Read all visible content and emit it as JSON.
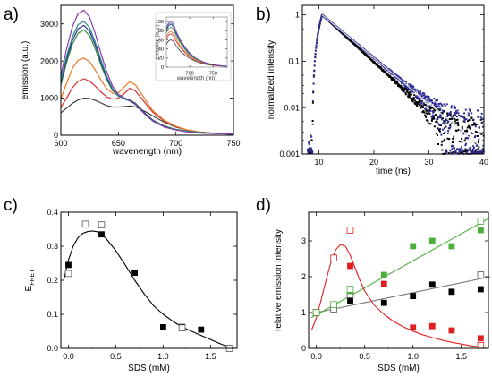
{
  "chart_data": [
    {
      "id": "a",
      "type": "line",
      "panel_label": "a)",
      "xlabel": "wavenength (nm)",
      "ylabel": "emission (a.u.)",
      "xlim": [
        600,
        750
      ],
      "ylim": [
        0,
        3500
      ],
      "xticks": [
        600,
        650,
        700,
        750
      ],
      "yticks": [
        0,
        1000,
        2000,
        3000
      ],
      "series": [
        {
          "color": "#3c3c3c",
          "x": [
            600,
            605,
            610,
            615,
            620,
            625,
            630,
            635,
            640,
            645,
            650,
            655,
            660,
            665,
            670,
            675,
            680,
            690,
            700,
            710,
            720,
            730,
            740,
            750
          ],
          "values": [
            600,
            730,
            860,
            950,
            1000,
            990,
            940,
            870,
            800,
            760,
            760,
            770,
            790,
            760,
            690,
            610,
            520,
            350,
            220,
            140,
            90,
            60,
            40,
            30
          ]
        },
        {
          "color": "#dd2c2c",
          "x": [
            600,
            605,
            610,
            615,
            620,
            625,
            630,
            635,
            640,
            645,
            650,
            655,
            660,
            665,
            670,
            675,
            680,
            690,
            700,
            710,
            720,
            730,
            740,
            750
          ],
          "values": [
            750,
            1000,
            1280,
            1450,
            1520,
            1460,
            1320,
            1160,
            1030,
            970,
            1000,
            1120,
            1270,
            1190,
            1000,
            800,
            620,
            380,
            230,
            140,
            90,
            60,
            40,
            30
          ]
        },
        {
          "color": "#ee7722",
          "x": [
            600,
            605,
            610,
            615,
            620,
            625,
            630,
            635,
            640,
            645,
            650,
            655,
            660,
            665,
            670,
            675,
            680,
            690,
            700,
            710,
            720,
            730,
            740,
            750
          ],
          "values": [
            980,
            1400,
            1800,
            2020,
            2080,
            1980,
            1750,
            1480,
            1250,
            1130,
            1140,
            1300,
            1450,
            1350,
            1120,
            880,
            660,
            400,
            240,
            140,
            90,
            60,
            40,
            30
          ]
        },
        {
          "color": "#3e8f3e",
          "x": [
            600,
            605,
            610,
            615,
            620,
            625,
            630,
            635,
            640,
            645,
            650,
            655,
            660,
            665,
            670,
            675,
            680,
            690,
            700,
            710,
            720,
            730,
            740,
            750
          ],
          "values": [
            1350,
            1950,
            2450,
            2750,
            2840,
            2680,
            2320,
            1880,
            1490,
            1200,
            1050,
            1000,
            960,
            860,
            700,
            540,
            410,
            250,
            160,
            110,
            80,
            60,
            40,
            30
          ]
        },
        {
          "color": "#2b2b8c",
          "x": [
            600,
            605,
            610,
            615,
            620,
            625,
            630,
            635,
            640,
            645,
            650,
            655,
            660,
            665,
            670,
            675,
            680,
            690,
            700,
            710,
            720,
            730,
            740,
            750
          ],
          "values": [
            1420,
            2050,
            2550,
            2870,
            2960,
            2800,
            2420,
            1960,
            1540,
            1230,
            1060,
            990,
            940,
            840,
            680,
            530,
            400,
            240,
            150,
            100,
            70,
            50,
            40,
            30
          ]
        },
        {
          "color": "#2a8a8a",
          "x": [
            600,
            605,
            610,
            615,
            620,
            625,
            630,
            635,
            640,
            645,
            650,
            655,
            660,
            665,
            670,
            675,
            680,
            690,
            700,
            710,
            720,
            730,
            740,
            750
          ],
          "values": [
            1480,
            2130,
            2650,
            2980,
            3070,
            2900,
            2500,
            2020,
            1580,
            1250,
            1060,
            980,
            920,
            820,
            660,
            510,
            390,
            230,
            150,
            100,
            70,
            50,
            40,
            30
          ]
        },
        {
          "color": "#8a3ab0",
          "x": [
            600,
            605,
            610,
            615,
            620,
            625,
            630,
            635,
            640,
            645,
            650,
            655,
            660,
            665,
            670,
            675,
            680,
            690,
            700,
            710,
            720,
            730,
            740,
            750
          ],
          "values": [
            1600,
            2330,
            2920,
            3280,
            3370,
            3180,
            2730,
            2190,
            1700,
            1320,
            1100,
            1010,
            940,
            830,
            660,
            510,
            380,
            220,
            140,
            90,
            60,
            50,
            40,
            30
          ]
        }
      ],
      "inset": {
        "xlabel": "wavelength (nm)",
        "ylabel": "emission (a.u.)",
        "xlim": [
          650,
          780
        ],
        "ylim": [
          0,
          110
        ],
        "xticks": [
          700,
          750
        ],
        "yticks": [
          0,
          20,
          40,
          60,
          80,
          100
        ],
        "series": [
          {
            "color": "#3c3c3c",
            "x": [
              650,
              655,
              660,
              665,
              670,
              680,
              690,
              700,
              710,
              720,
              730,
              740,
              750,
              760,
              770,
              780
            ],
            "values": [
              50,
              58,
              60,
              57,
              48,
              35,
              26,
              19,
              14,
              10,
              7,
              5,
              4,
              3,
              2,
              2
            ]
          },
          {
            "color": "#dd2c2c",
            "x": [
              650,
              655,
              660,
              665,
              670,
              680,
              690,
              700,
              710,
              720,
              730,
              740,
              750,
              760,
              770,
              780
            ],
            "values": [
              62,
              71,
              73,
              69,
              58,
              43,
              31,
              22,
              16,
              12,
              8,
              6,
              4,
              3,
              3,
              2
            ]
          },
          {
            "color": "#ee7722",
            "x": [
              650,
              655,
              660,
              665,
              670,
              680,
              690,
              700,
              710,
              720,
              730,
              740,
              750,
              760,
              770,
              780
            ],
            "values": [
              67,
              76,
              78,
              74,
              63,
              46,
              34,
              24,
              17,
              12,
              9,
              6,
              5,
              4,
              3,
              2
            ]
          },
          {
            "color": "#3e8f3e",
            "x": [
              650,
              655,
              660,
              665,
              670,
              680,
              690,
              700,
              710,
              720,
              730,
              740,
              750,
              760,
              770,
              780
            ],
            "values": [
              75,
              85,
              88,
              83,
              70,
              52,
              38,
              27,
              19,
              14,
              10,
              7,
              5,
              4,
              3,
              2
            ]
          },
          {
            "color": "#2b2b8c",
            "x": [
              650,
              655,
              660,
              665,
              670,
              680,
              690,
              700,
              710,
              720,
              730,
              740,
              750,
              760,
              770,
              780
            ],
            "values": [
              80,
              91,
              94,
              89,
              75,
              56,
              41,
              29,
              21,
              15,
              10,
              7,
              5,
              4,
              3,
              2
            ]
          },
          {
            "color": "#2a8a8a",
            "x": [
              650,
              655,
              660,
              665,
              670,
              680,
              690,
              700,
              710,
              720,
              730,
              740,
              750,
              760,
              770,
              780
            ],
            "values": [
              83,
              94,
              97,
              92,
              78,
              58,
              42,
              30,
              21,
              15,
              11,
              8,
              6,
              4,
              3,
              2
            ]
          },
          {
            "color": "#8a3ab0",
            "x": [
              650,
              655,
              660,
              665,
              670,
              680,
              690,
              700,
              710,
              720,
              730,
              740,
              750,
              760,
              770,
              780
            ],
            "values": [
              86,
              98,
              101,
              96,
              81,
              60,
              44,
              31,
              22,
              16,
              11,
              8,
              6,
              4,
              3,
              2
            ]
          }
        ]
      }
    },
    {
      "id": "b",
      "type": "line",
      "panel_label": "b)",
      "xlabel": "time (ns)",
      "ylabel": "normalized intensity",
      "xlim": [
        7,
        40
      ],
      "ylim": [
        0.001,
        1.6
      ],
      "yscale": "log",
      "xticks": [
        10,
        20,
        30,
        40
      ],
      "yticks": [
        0.001,
        0.01,
        0.1,
        1
      ],
      "ytick_labels": [
        "0.001",
        "0.01",
        "0.1",
        "1"
      ],
      "series": [
        {
          "color": "#000000",
          "rise_start": 8.8,
          "peak_time": 10.6,
          "decay_constant": 4.0,
          "noise_floor": 0.0018
        },
        {
          "color": "#2e2e96",
          "rise_start": 8.8,
          "peak_time": 10.6,
          "decay_constant": 4.4,
          "noise_floor": 0.0025
        },
        {
          "color": "#dddddd",
          "rise_start": 8.8,
          "peak_time": 10.6,
          "decay_constant": 4.4,
          "noise_floor": 0.0025
        }
      ]
    },
    {
      "id": "c",
      "type": "scatter",
      "panel_label": "c)",
      "xlabel": "SDS (mM)",
      "ylabel": "E",
      "ylabel_sub": "FRET",
      "xlim": [
        -0.08,
        1.78
      ],
      "ylim": [
        0,
        0.4
      ],
      "xticks": [
        0.0,
        0.5,
        1.0,
        1.5
      ],
      "xtick_labels": [
        "0.0",
        "0.5",
        "1.0",
        "1.5"
      ],
      "yticks": [
        0.0,
        0.1,
        0.2,
        0.3,
        0.4
      ],
      "ytick_labels": [
        "0.0",
        "0.1",
        "0.2",
        "0.3",
        "0.4"
      ],
      "series": [
        {
          "marker": "filled-square",
          "color": "#000000",
          "x": [
            0.0,
            0.35,
            0.7,
            1.0,
            1.2,
            1.4,
            1.7
          ],
          "values": [
            0.245,
            0.335,
            0.222,
            0.062,
            0.063,
            0.055,
            0.0
          ]
        },
        {
          "marker": "open-square",
          "color": "#555555",
          "x": [
            0.0,
            0.18,
            0.35,
            1.2,
            1.7
          ],
          "values": [
            0.22,
            0.365,
            0.363,
            0.06,
            0.0
          ]
        },
        {
          "marker": "line",
          "color": "#000000",
          "x": [
            -0.05,
            0.0,
            0.05,
            0.1,
            0.15,
            0.2,
            0.25,
            0.3,
            0.35,
            0.4,
            0.5,
            0.6,
            0.7,
            0.8,
            0.9,
            1.0,
            1.1,
            1.2,
            1.3,
            1.4,
            1.5,
            1.6,
            1.7
          ],
          "values": [
            0.2,
            0.26,
            0.3,
            0.325,
            0.338,
            0.343,
            0.345,
            0.343,
            0.335,
            0.322,
            0.287,
            0.245,
            0.2,
            0.16,
            0.125,
            0.1,
            0.08,
            0.063,
            0.05,
            0.038,
            0.026,
            0.014,
            0.003
          ]
        }
      ]
    },
    {
      "id": "d",
      "type": "scatter",
      "panel_label": "d)",
      "xlabel": "SDS (mM)",
      "ylabel": "relative emission intensity",
      "xlim": [
        -0.08,
        1.78
      ],
      "ylim": [
        0,
        3.8
      ],
      "xticks": [
        0.0,
        0.5,
        1.0,
        1.5
      ],
      "xtick_labels": [
        "0.0",
        "0.5",
        "1.0",
        "1.5"
      ],
      "yticks": [
        0,
        1,
        2,
        3
      ],
      "series": [
        {
          "marker": "filled-square",
          "color": "#000000",
          "x": [
            0.0,
            0.35,
            0.7,
            1.0,
            1.2,
            1.4,
            1.7
          ],
          "values": [
            1.0,
            1.32,
            1.27,
            1.46,
            1.78,
            1.58,
            1.65
          ]
        },
        {
          "marker": "open-square",
          "color": "#555555",
          "x": [
            0.0,
            0.18,
            0.35,
            1.7
          ],
          "values": [
            1.0,
            1.1,
            1.5,
            2.05
          ]
        },
        {
          "marker": "filled-square",
          "color": "#e02020",
          "x": [
            0.0,
            0.35,
            0.7,
            1.0,
            1.2,
            1.4,
            1.7
          ],
          "values": [
            1.0,
            2.3,
            1.8,
            0.58,
            0.62,
            0.5,
            0.28
          ]
        },
        {
          "marker": "open-square",
          "color": "#e02020",
          "x": [
            0.0,
            0.18,
            0.35,
            1.7
          ],
          "values": [
            1.0,
            2.52,
            3.3,
            0.08
          ]
        },
        {
          "marker": "filled-square",
          "color": "#4caf3c",
          "x": [
            0.0,
            0.35,
            0.7,
            1.0,
            1.2,
            1.4,
            1.7
          ],
          "values": [
            1.0,
            1.6,
            2.05,
            2.85,
            3.0,
            2.85,
            3.3
          ]
        },
        {
          "marker": "open-square",
          "color": "#4caf3c",
          "x": [
            0.0,
            0.18,
            0.35,
            1.7
          ],
          "values": [
            1.0,
            1.22,
            1.65,
            3.55
          ]
        },
        {
          "marker": "line",
          "color": "#777777",
          "x": [
            -0.05,
            1.8
          ],
          "values": [
            0.97,
            2.0
          ]
        },
        {
          "marker": "line",
          "color": "#4caf3c",
          "x": [
            -0.05,
            1.8
          ],
          "values": [
            0.86,
            3.65
          ]
        },
        {
          "marker": "line",
          "color": "#e02020",
          "x": [
            -0.05,
            0.0,
            0.05,
            0.1,
            0.15,
            0.2,
            0.25,
            0.3,
            0.35,
            0.4,
            0.45,
            0.5,
            0.6,
            0.7,
            0.8,
            0.9,
            1.0,
            1.1,
            1.2,
            1.3,
            1.4,
            1.5,
            1.6,
            1.7
          ],
          "values": [
            0.5,
            0.85,
            1.35,
            1.9,
            2.4,
            2.75,
            2.9,
            2.85,
            2.6,
            2.25,
            1.9,
            1.6,
            1.2,
            0.95,
            0.75,
            0.6,
            0.48,
            0.38,
            0.3,
            0.23,
            0.17,
            0.12,
            0.07,
            0.04
          ]
        }
      ]
    }
  ]
}
